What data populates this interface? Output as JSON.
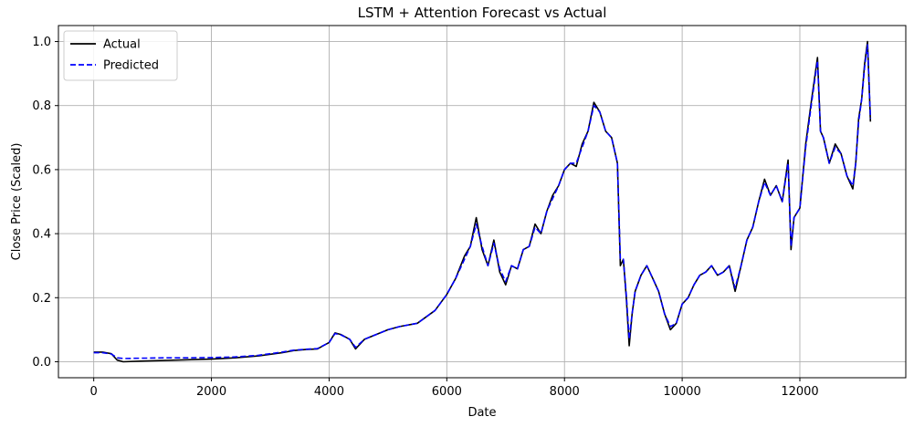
{
  "chart_data": {
    "type": "line",
    "title": "LSTM + Attention Forecast vs Actual",
    "xlabel": "Date",
    "ylabel": "Close Price (Scaled)",
    "xlim": [
      -600,
      13800
    ],
    "ylim": [
      -0.05,
      1.05
    ],
    "xticks": [
      0,
      2000,
      4000,
      6000,
      8000,
      10000,
      12000
    ],
    "xtick_labels": [
      "0",
      "2000",
      "4000",
      "6000",
      "8000",
      "10000",
      "12000"
    ],
    "yticks": [
      0.0,
      0.2,
      0.4,
      0.6,
      0.8,
      1.0
    ],
    "ytick_labels": [
      "0.0",
      "0.2",
      "0.4",
      "0.6",
      "0.8",
      "1.0"
    ],
    "grid": true,
    "legend_position": "top-left",
    "series": [
      {
        "name": "Actual",
        "color": "#000000",
        "style": "solid",
        "x": [
          0,
          150,
          300,
          400,
          500,
          800,
          1200,
          1600,
          2000,
          2400,
          2800,
          3200,
          3400,
          3600,
          3800,
          4000,
          4100,
          4200,
          4350,
          4450,
          4600,
          4800,
          5000,
          5200,
          5500,
          5800,
          6000,
          6150,
          6300,
          6400,
          6500,
          6600,
          6700,
          6800,
          6900,
          7000,
          7100,
          7200,
          7300,
          7400,
          7500,
          7600,
          7700,
          7800,
          7900,
          8000,
          8100,
          8200,
          8300,
          8400,
          8500,
          8600,
          8700,
          8800,
          8900,
          8950,
          9000,
          9050,
          9100,
          9150,
          9200,
          9300,
          9400,
          9500,
          9600,
          9700,
          9800,
          9900,
          10000,
          10100,
          10200,
          10300,
          10400,
          10500,
          10600,
          10700,
          10800,
          10900,
          11000,
          11100,
          11200,
          11300,
          11400,
          11500,
          11600,
          11700,
          11800,
          11850,
          11900,
          12000,
          12100,
          12200,
          12300,
          12350,
          12400,
          12500,
          12600,
          12700,
          12800,
          12900,
          12950,
          13000,
          13050,
          13100,
          13150,
          13200
        ],
        "values": [
          0.03,
          0.03,
          0.025,
          0.005,
          0.0,
          0.002,
          0.004,
          0.006,
          0.008,
          0.012,
          0.018,
          0.028,
          0.035,
          0.038,
          0.04,
          0.06,
          0.09,
          0.085,
          0.07,
          0.04,
          0.07,
          0.085,
          0.1,
          0.11,
          0.12,
          0.16,
          0.21,
          0.26,
          0.33,
          0.36,
          0.45,
          0.35,
          0.3,
          0.38,
          0.28,
          0.24,
          0.3,
          0.29,
          0.35,
          0.36,
          0.43,
          0.4,
          0.47,
          0.52,
          0.55,
          0.6,
          0.62,
          0.61,
          0.68,
          0.72,
          0.81,
          0.78,
          0.72,
          0.7,
          0.62,
          0.3,
          0.32,
          0.2,
          0.05,
          0.15,
          0.22,
          0.27,
          0.3,
          0.26,
          0.22,
          0.15,
          0.1,
          0.12,
          0.18,
          0.2,
          0.24,
          0.27,
          0.28,
          0.3,
          0.27,
          0.28,
          0.3,
          0.22,
          0.3,
          0.38,
          0.42,
          0.5,
          0.57,
          0.52,
          0.55,
          0.5,
          0.63,
          0.35,
          0.45,
          0.48,
          0.68,
          0.82,
          0.95,
          0.72,
          0.7,
          0.62,
          0.68,
          0.65,
          0.58,
          0.54,
          0.62,
          0.76,
          0.82,
          0.93,
          1.0,
          0.75
        ]
      },
      {
        "name": "Predicted",
        "color": "#0000ff",
        "style": "dashed",
        "x": [
          0,
          150,
          300,
          400,
          500,
          800,
          1200,
          1600,
          2000,
          2400,
          2800,
          3200,
          3400,
          3600,
          3800,
          4000,
          4100,
          4200,
          4350,
          4450,
          4600,
          4800,
          5000,
          5200,
          5500,
          5800,
          6000,
          6150,
          6300,
          6400,
          6500,
          6600,
          6700,
          6800,
          6900,
          7000,
          7100,
          7200,
          7300,
          7400,
          7500,
          7600,
          7700,
          7800,
          7900,
          8000,
          8100,
          8200,
          8300,
          8400,
          8500,
          8600,
          8700,
          8800,
          8900,
          8950,
          9000,
          9050,
          9100,
          9150,
          9200,
          9300,
          9400,
          9500,
          9600,
          9700,
          9800,
          9900,
          10000,
          10100,
          10200,
          10300,
          10400,
          10500,
          10600,
          10700,
          10800,
          10900,
          11000,
          11100,
          11200,
          11300,
          11400,
          11500,
          11600,
          11700,
          11800,
          11850,
          11900,
          12000,
          12100,
          12200,
          12300,
          12350,
          12400,
          12500,
          12600,
          12700,
          12800,
          12900,
          12950,
          13000,
          13050,
          13100,
          13150,
          13200
        ],
        "values": [
          0.028,
          0.028,
          0.024,
          0.012,
          0.01,
          0.011,
          0.012,
          0.012,
          0.013,
          0.015,
          0.02,
          0.03,
          0.036,
          0.039,
          0.041,
          0.06,
          0.088,
          0.084,
          0.07,
          0.045,
          0.07,
          0.085,
          0.1,
          0.11,
          0.12,
          0.16,
          0.21,
          0.26,
          0.32,
          0.36,
          0.43,
          0.36,
          0.3,
          0.37,
          0.29,
          0.25,
          0.3,
          0.29,
          0.35,
          0.36,
          0.42,
          0.4,
          0.47,
          0.51,
          0.55,
          0.6,
          0.62,
          0.62,
          0.67,
          0.72,
          0.8,
          0.78,
          0.72,
          0.7,
          0.62,
          0.32,
          0.32,
          0.21,
          0.07,
          0.15,
          0.22,
          0.27,
          0.3,
          0.26,
          0.22,
          0.15,
          0.11,
          0.12,
          0.18,
          0.2,
          0.24,
          0.27,
          0.28,
          0.3,
          0.27,
          0.28,
          0.3,
          0.23,
          0.3,
          0.38,
          0.42,
          0.5,
          0.56,
          0.52,
          0.55,
          0.5,
          0.62,
          0.36,
          0.45,
          0.48,
          0.67,
          0.81,
          0.94,
          0.72,
          0.7,
          0.62,
          0.67,
          0.65,
          0.58,
          0.55,
          0.62,
          0.75,
          0.82,
          0.92,
          0.99,
          0.76
        ]
      }
    ]
  }
}
